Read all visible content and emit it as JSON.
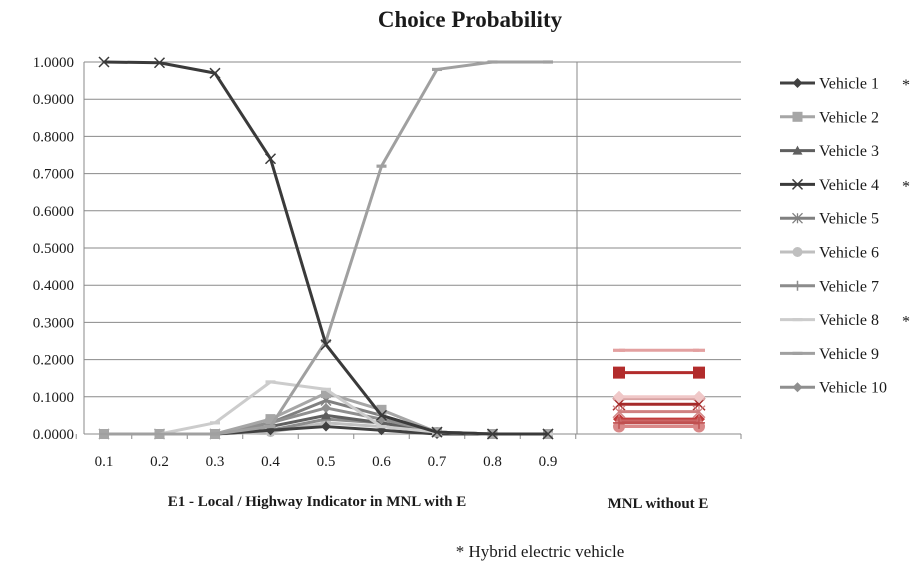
{
  "chart_data": {
    "type": "line",
    "title": "Choice Probability",
    "y_ticks": [
      "1.0000",
      "0.9000",
      "0.8000",
      "0.7000",
      "0.6000",
      "0.5000",
      "0.4000",
      "0.3000",
      "0.2000",
      "0.1000",
      "0.0000"
    ],
    "ylim": [
      0,
      1
    ],
    "grid": true,
    "legend_position": "right",
    "x": [
      0.1,
      0.2,
      0.3,
      0.4,
      0.5,
      0.6,
      0.7,
      0.8,
      0.9
    ],
    "x_tick_labels": [
      "0.1",
      "0.2",
      "0.3",
      "0.4",
      "0.5",
      "0.6",
      "0.7",
      "0.8",
      "0.9"
    ],
    "xlabel_left": "E1 - Local / Highway Indicator in MNL with E",
    "xlabel_right": "MNL without E",
    "footnote": "* Hybrid electric vehicle",
    "series": [
      {
        "name": "Vehicle 1",
        "mark": "*",
        "marker": "diamond",
        "color": "#404040",
        "values": [
          0,
          0,
          0,
          0.01,
          0.02,
          0.01,
          0,
          0,
          0
        ],
        "mnl_without_e": 0.04
      },
      {
        "name": "Vehicle 2",
        "mark": "",
        "marker": "square",
        "color": "#a6a6a6",
        "values": [
          0,
          0,
          0,
          0.04,
          0.11,
          0.065,
          0.005,
          0,
          0
        ],
        "mnl_without_e": 0.165
      },
      {
        "name": "Vehicle 3",
        "mark": "",
        "marker": "triangle",
        "color": "#5f5f5f",
        "values": [
          0,
          0,
          0,
          0.02,
          0.05,
          0.03,
          0.005,
          0,
          0
        ],
        "mnl_without_e": 0.035
      },
      {
        "name": "Vehicle 4",
        "mark": "*",
        "marker": "x",
        "color": "#3a3a3a",
        "values": [
          1.0,
          0.998,
          0.97,
          0.74,
          0.24,
          0.05,
          0.005,
          0,
          0
        ],
        "mnl_without_e": 0.08
      },
      {
        "name": "Vehicle 5",
        "mark": "",
        "marker": "star",
        "color": "#808080",
        "values": [
          0,
          0,
          0,
          0.03,
          0.09,
          0.05,
          0.005,
          0,
          0
        ],
        "mnl_without_e": 0.06
      },
      {
        "name": "Vehicle 6",
        "mark": "",
        "marker": "circle",
        "color": "#bfbfbf",
        "values": [
          0,
          0,
          0,
          0.005,
          0.03,
          0.02,
          0.005,
          0,
          0
        ],
        "mnl_without_e": 0.02
      },
      {
        "name": "Vehicle 7",
        "mark": "",
        "marker": "plus",
        "color": "#8c8c8c",
        "values": [
          0,
          0,
          0,
          0.01,
          0.04,
          0.03,
          0.005,
          0,
          0
        ],
        "mnl_without_e": 0.03
      },
      {
        "name": "Vehicle 8",
        "mark": "*",
        "marker": "dash",
        "color": "#cccccc",
        "values": [
          0,
          0,
          0.03,
          0.14,
          0.12,
          0.02,
          0.005,
          0,
          0
        ],
        "mnl_without_e": 0.225
      },
      {
        "name": "Vehicle 9",
        "mark": "",
        "marker": "dash",
        "color": "#a0a0a0",
        "values": [
          0,
          0,
          0,
          0.02,
          0.25,
          0.72,
          0.98,
          1.0,
          1.0
        ],
        "mnl_without_e": 0.095
      },
      {
        "name": "Vehicle 10",
        "mark": "",
        "marker": "diamond",
        "color": "#8f8f8f",
        "values": [
          0,
          0,
          0,
          0.03,
          0.07,
          0.04,
          0.005,
          0,
          0
        ],
        "mnl_without_e": 0.1
      }
    ],
    "mnl_without_e_colors": [
      "#c23b3b",
      "#b22c2c",
      "#cc6666",
      "#a52a2a",
      "#d08080",
      "#d98888",
      "#c05050",
      "#e3a0a0",
      "#d9a3a3",
      "#f0c8c8"
    ]
  }
}
